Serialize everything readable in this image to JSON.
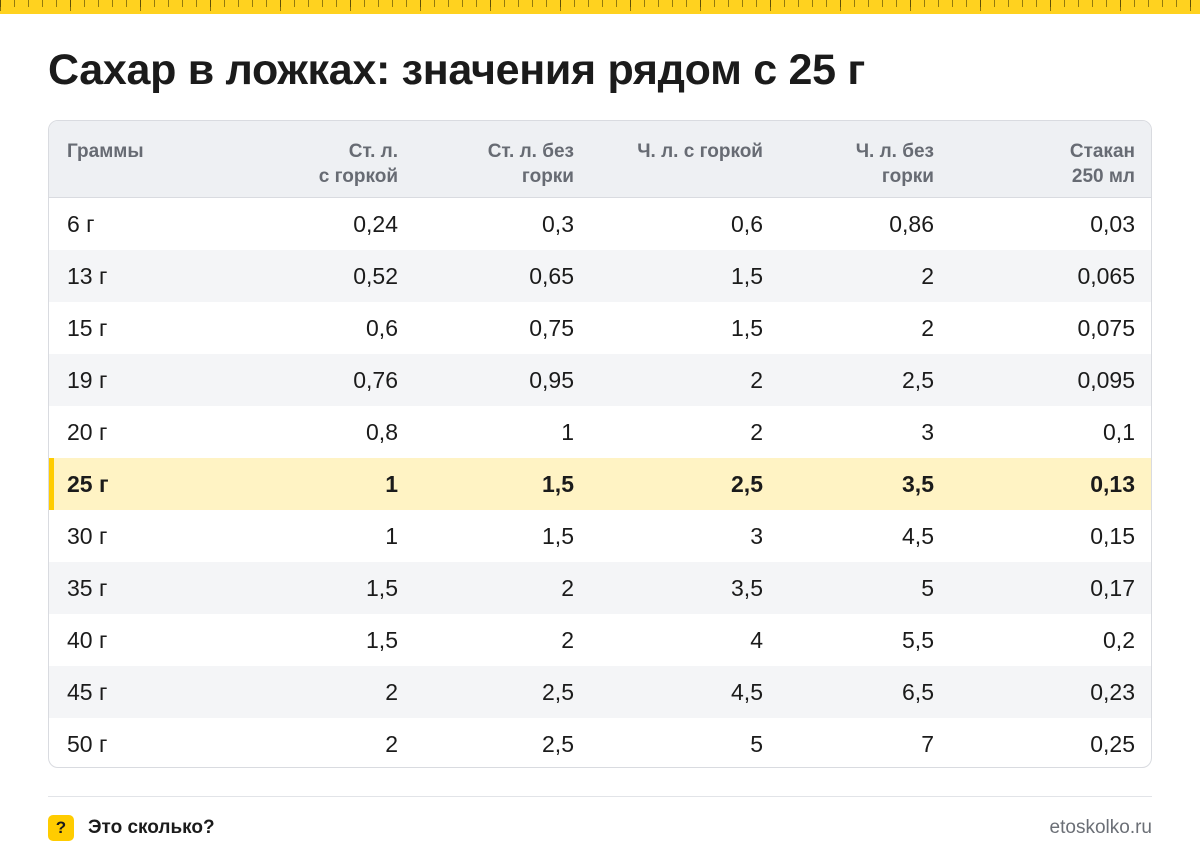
{
  "colors": {
    "accent": "#ffcc00",
    "ruler": "#ffd21f",
    "highlight_row": "#fff3c4",
    "header_bg": "#eef0f3",
    "stripe": "#f4f5f7"
  },
  "title": "Сахар в ложках: значения рядом с 25 г",
  "table": {
    "headers": [
      [
        "Граммы"
      ],
      [
        "Ст. л.",
        "с горкой"
      ],
      [
        "Ст. л. без",
        "горки"
      ],
      [
        "Ч. л. с горкой"
      ],
      [
        "Ч. л. без",
        "горки"
      ],
      [
        "Стакан",
        "250 мл"
      ]
    ],
    "highlighted_row": 5,
    "rows": [
      [
        "6 г",
        "0,24",
        "0,3",
        "0,6",
        "0,86",
        "0,03"
      ],
      [
        "13 г",
        "0,52",
        "0,65",
        "1,5",
        "2",
        "0,065"
      ],
      [
        "15 г",
        "0,6",
        "0,75",
        "1,5",
        "2",
        "0,075"
      ],
      [
        "19 г",
        "0,76",
        "0,95",
        "2",
        "2,5",
        "0,095"
      ],
      [
        "20 г",
        "0,8",
        "1",
        "2",
        "3",
        "0,1"
      ],
      [
        "25 г",
        "1",
        "1,5",
        "2,5",
        "3,5",
        "0,13"
      ],
      [
        "30 г",
        "1",
        "1,5",
        "3",
        "4,5",
        "0,15"
      ],
      [
        "35 г",
        "1,5",
        "2",
        "3,5",
        "5",
        "0,17"
      ],
      [
        "40 г",
        "1,5",
        "2",
        "4",
        "5,5",
        "0,2"
      ],
      [
        "45 г",
        "2",
        "2,5",
        "4,5",
        "6,5",
        "0,23"
      ],
      [
        "50 г",
        "2",
        "2,5",
        "5",
        "7",
        "0,25"
      ]
    ]
  },
  "footer": {
    "badge_icon": "question-mark-icon",
    "badge_text": "?",
    "brand": "Это сколько?",
    "site": "etoskolko.ru"
  }
}
